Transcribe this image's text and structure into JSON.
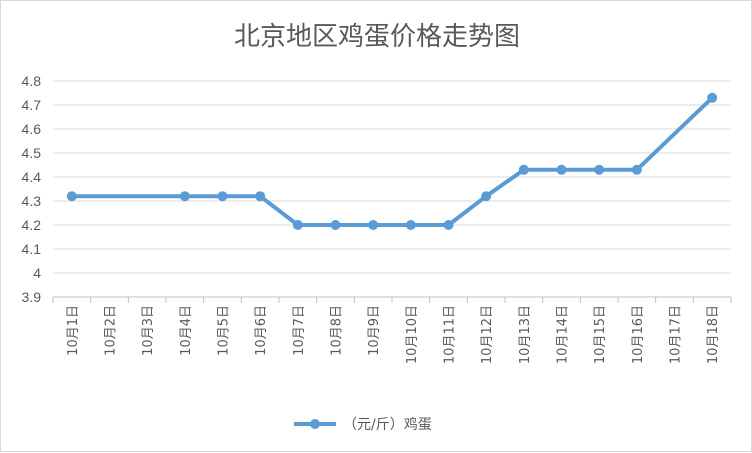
{
  "chart_data": {
    "type": "line",
    "title": "北京地区鸡蛋价格走势图",
    "categories": [
      "10月1日",
      "10月2日",
      "10月3日",
      "10月4日",
      "10月5日",
      "10月6日",
      "10月7日",
      "10月8日",
      "10月9日",
      "10月10日",
      "10月11日",
      "10月12日",
      "10月13日",
      "10月14日",
      "10月15日",
      "10月16日",
      "10月17日",
      "10月18日"
    ],
    "series": [
      {
        "name": "（元/斤）鸡蛋",
        "values": [
          4.32,
          null,
          null,
          4.32,
          4.32,
          4.32,
          4.2,
          4.2,
          4.2,
          4.2,
          4.2,
          4.32,
          4.43,
          4.43,
          4.43,
          4.43,
          null,
          4.73
        ],
        "color": "#5b9bd5"
      }
    ],
    "yticks": [
      "3.9",
      "4",
      "4.1",
      "4.2",
      "4.3",
      "4.4",
      "4.5",
      "4.6",
      "4.7",
      "4.8"
    ],
    "ylim": [
      3.9,
      4.8
    ],
    "grid": true,
    "legend": "bottom"
  }
}
